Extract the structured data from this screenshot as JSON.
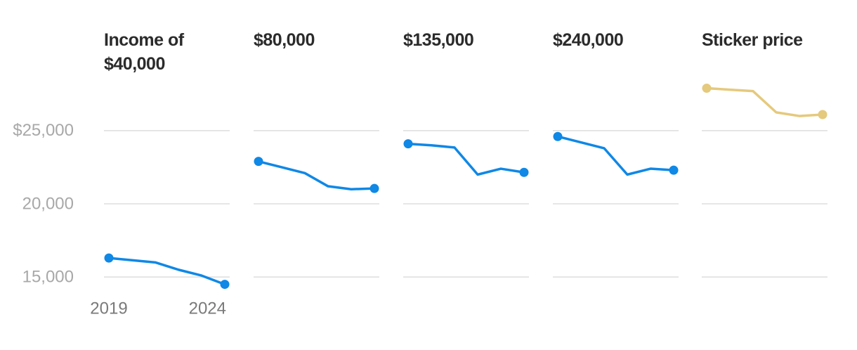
{
  "chart_data": [
    {
      "type": "line",
      "title": "Income of $40,000",
      "x": [
        2019,
        2020,
        2021,
        2022,
        2023,
        2024
      ],
      "xlim": [
        2019,
        2024
      ],
      "xticks": [
        2019,
        2024
      ],
      "ylim": [
        14000,
        28500
      ],
      "yticks": [
        {
          "value": 25000,
          "label": "$25,000"
        },
        {
          "value": 20000,
          "label": "20,000"
        },
        {
          "value": 15000,
          "label": "15,000"
        }
      ],
      "grid": true,
      "series": [
        {
          "color": "#0f88e6",
          "values": [
            16300,
            16150,
            16000,
            15500,
            15100,
            14500
          ]
        }
      ]
    },
    {
      "type": "line",
      "title": "$80,000",
      "x": [
        2019,
        2020,
        2021,
        2022,
        2023,
        2024
      ],
      "xlim": [
        2019,
        2024
      ],
      "ylim": [
        14000,
        28500
      ],
      "grid": true,
      "series": [
        {
          "color": "#0f88e6",
          "values": [
            22900,
            22500,
            22100,
            21200,
            21000,
            21050
          ]
        }
      ]
    },
    {
      "type": "line",
      "title": "$135,000",
      "x": [
        2019,
        2020,
        2021,
        2022,
        2023,
        2024
      ],
      "xlim": [
        2019,
        2024
      ],
      "ylim": [
        14000,
        28500
      ],
      "grid": true,
      "series": [
        {
          "color": "#0f88e6",
          "values": [
            24100,
            24000,
            23850,
            22000,
            22400,
            22150
          ]
        }
      ]
    },
    {
      "type": "line",
      "title": "$240,000",
      "x": [
        2019,
        2020,
        2021,
        2022,
        2023,
        2024
      ],
      "xlim": [
        2019,
        2024
      ],
      "ylim": [
        14000,
        28500
      ],
      "grid": true,
      "series": [
        {
          "color": "#0f88e6",
          "values": [
            24600,
            24200,
            23800,
            22000,
            22400,
            22300
          ]
        }
      ]
    },
    {
      "type": "line",
      "title": "Sticker price",
      "x": [
        2019,
        2020,
        2021,
        2022,
        2023,
        2024
      ],
      "xlim": [
        2019,
        2024
      ],
      "ylim": [
        14000,
        28500
      ],
      "grid": true,
      "series": [
        {
          "color": "#e5c97c",
          "values": [
            27900,
            27800,
            27700,
            26250,
            26000,
            26100
          ]
        }
      ]
    }
  ]
}
